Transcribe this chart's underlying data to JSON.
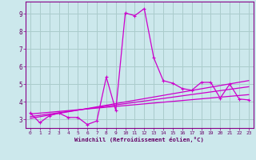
{
  "xlabel": "Windchill (Refroidissement éolien,°C)",
  "background_color": "#cce8ec",
  "grid_color": "#aacccc",
  "line_color": "#cc00cc",
  "xlim": [
    -0.5,
    23.5
  ],
  "ylim": [
    2.5,
    9.7
  ],
  "xticks": [
    0,
    1,
    2,
    3,
    4,
    5,
    6,
    7,
    8,
    9,
    10,
    11,
    12,
    13,
    14,
    15,
    16,
    17,
    18,
    19,
    20,
    21,
    22,
    23
  ],
  "yticks": [
    3,
    4,
    5,
    6,
    7,
    8,
    9
  ],
  "series1_x": [
    0,
    1,
    2,
    3,
    4,
    5,
    6,
    7,
    8,
    9,
    10,
    11,
    12,
    13,
    14,
    15,
    16,
    17,
    18,
    19,
    20,
    21,
    22,
    23
  ],
  "series1_y": [
    3.35,
    2.8,
    3.2,
    3.35,
    3.1,
    3.1,
    2.7,
    2.9,
    5.4,
    3.5,
    9.05,
    8.9,
    9.3,
    6.5,
    5.2,
    5.05,
    4.75,
    4.65,
    5.1,
    5.1,
    4.2,
    5.0,
    4.15,
    4.1
  ],
  "series2_x": [
    0,
    23
  ],
  "series2_y": [
    3.05,
    5.2
  ],
  "series3_x": [
    0,
    23
  ],
  "series3_y": [
    3.15,
    4.85
  ],
  "series4_x": [
    0,
    23
  ],
  "series4_y": [
    3.3,
    4.4
  ]
}
